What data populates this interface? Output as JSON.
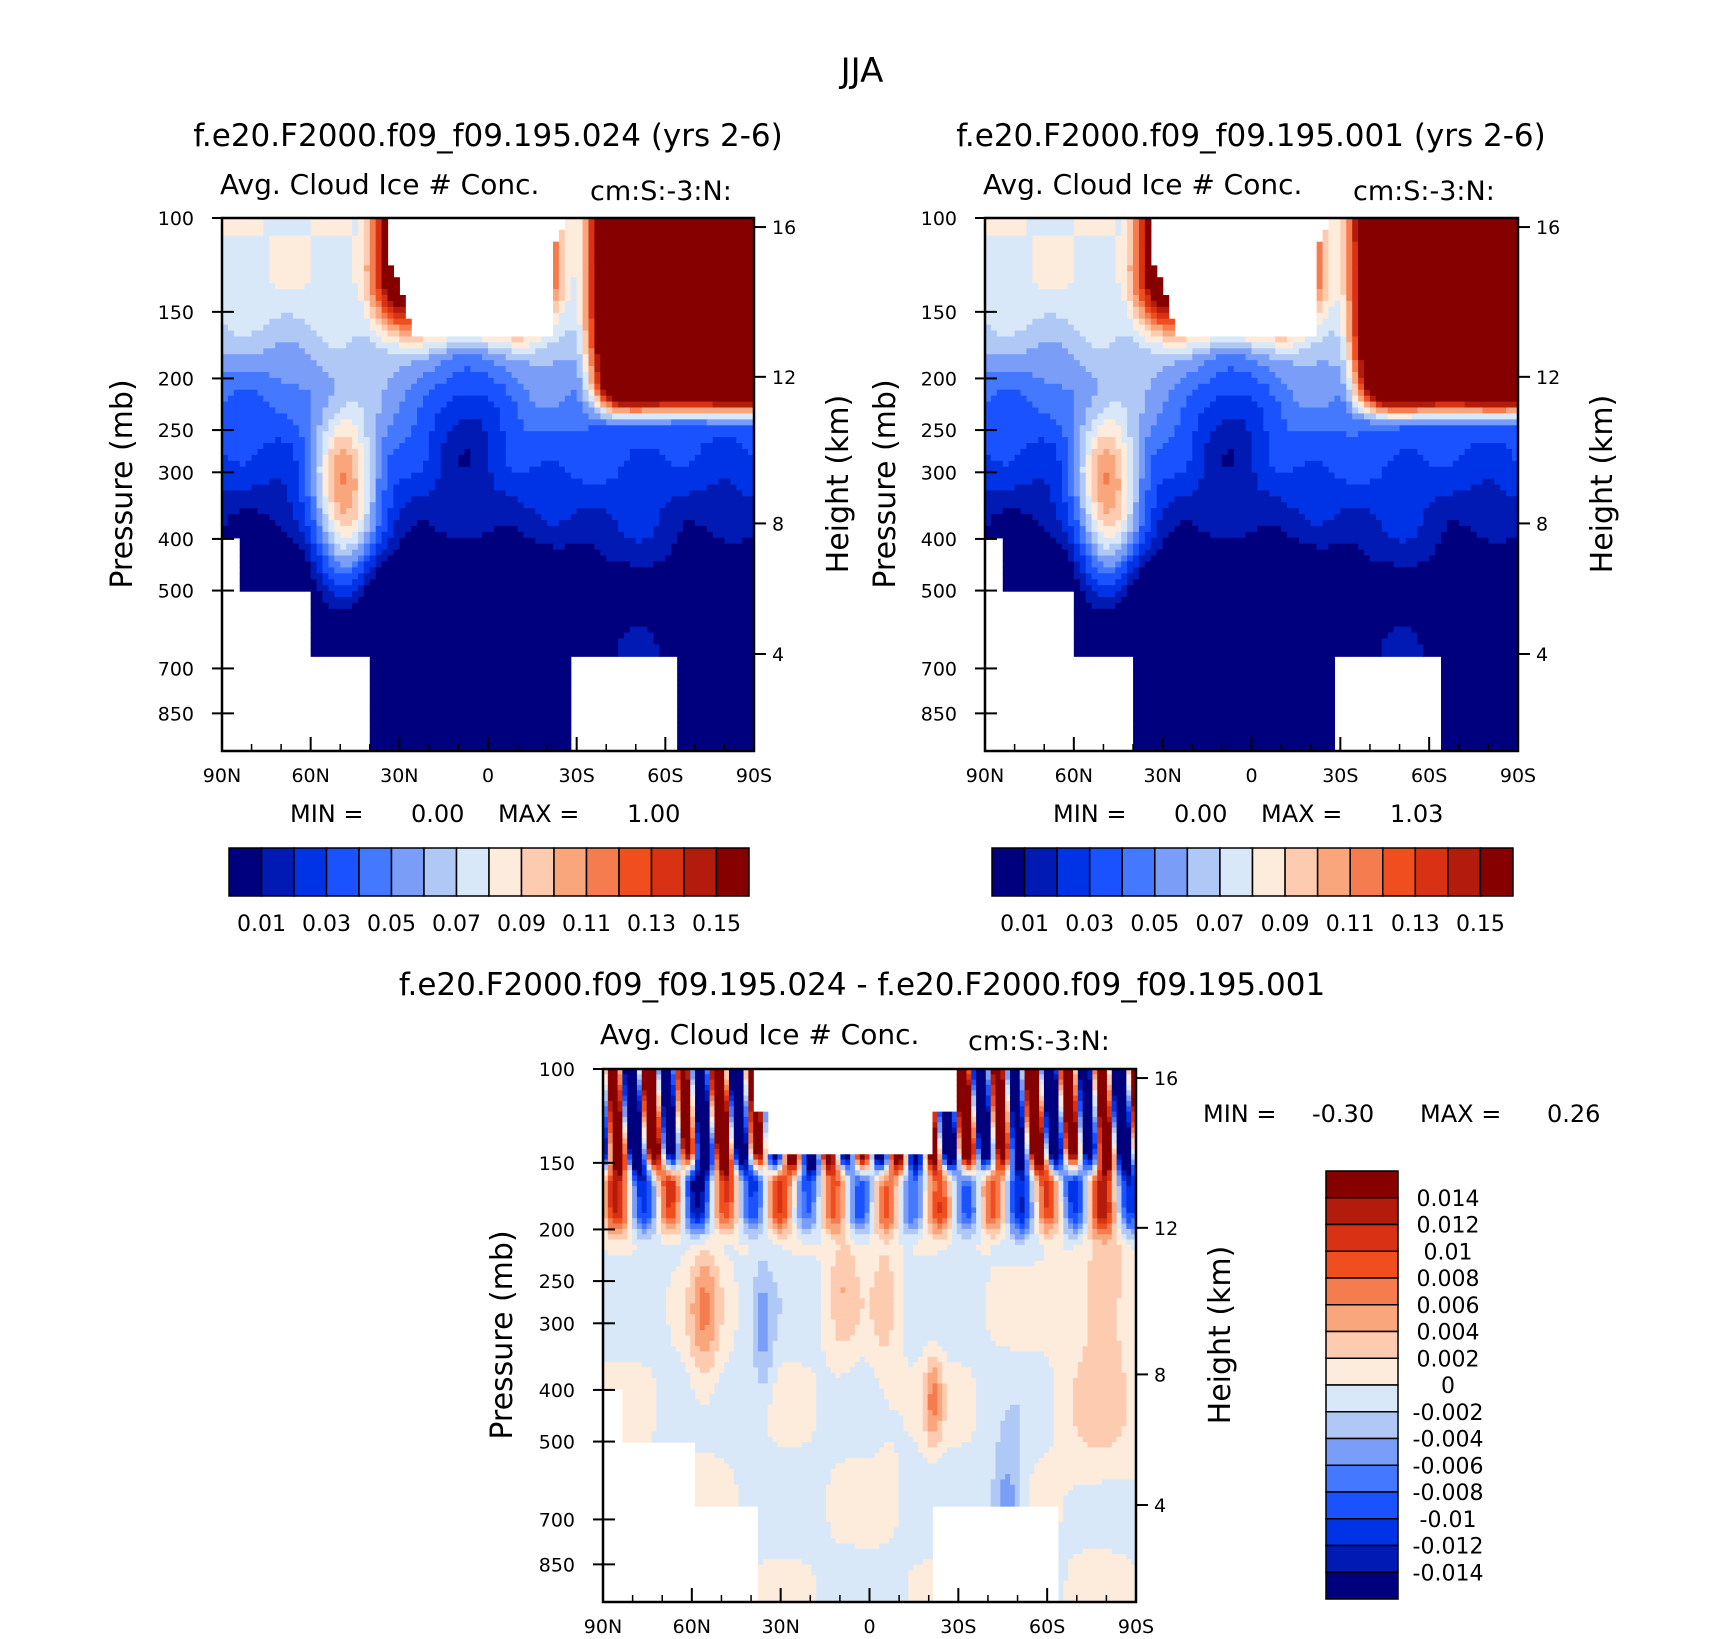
{
  "chart_data": {
    "type": "heatmap",
    "title": "JJA",
    "colors": {
      "abs": [
        "#00007f",
        "#001ab3",
        "#0033e6",
        "#1a52ff",
        "#4478ff",
        "#7a9ef7",
        "#b0c8f5",
        "#d9e8f8",
        "#fdebdc",
        "#fdcbb0",
        "#f9a67d",
        "#f57c4e",
        "#f04e1f",
        "#d93114",
        "#b31c0c",
        "#870000"
      ],
      "diff": [
        "#870000",
        "#b31c0c",
        "#d93114",
        "#f04e1f",
        "#f57c4e",
        "#f9a67d",
        "#fdcbb0",
        "#fdebdc",
        "#d9e8f8",
        "#b0c8f5",
        "#7a9ef7",
        "#4478ff",
        "#1a52ff",
        "#0033e6",
        "#001ab3",
        "#00007f"
      ]
    },
    "panels": [
      {
        "id": "ctrl",
        "title": "f.e20.F2000.f09_f09.195.024 (yrs 2-6)",
        "variable": "Avg. Cloud Ice # Conc.",
        "units": "cm:S:-3:N:",
        "ylabel": "Pressure (mb)",
        "y2label": "Height (km)",
        "xticks": [
          "90N",
          "60N",
          "30N",
          "0",
          "30S",
          "60S",
          "90S"
        ],
        "yticks": [
          "100",
          "150",
          "200",
          "250",
          "300",
          "400",
          "500",
          "700",
          "850"
        ],
        "y2ticks": [
          "16",
          "12",
          "8",
          "4"
        ],
        "min_label": "MIN =",
        "min_value": "0.00",
        "max_label": "MAX =",
        "max_value": "1.00",
        "colorbar_labels": [
          "0.01",
          "0.03",
          "0.05",
          "0.07",
          "0.09",
          "0.11",
          "0.13",
          "0.15"
        ],
        "bias": 0
      },
      {
        "id": "test",
        "title": "f.e20.F2000.f09_f09.195.001 (yrs 2-6)",
        "variable": "Avg. Cloud Ice # Conc.",
        "units": "cm:S:-3:N:",
        "ylabel": "Pressure (mb)",
        "y2label": "Height (km)",
        "xticks": [
          "90N",
          "60N",
          "30N",
          "0",
          "30S",
          "60S",
          "90S"
        ],
        "yticks": [
          "100",
          "150",
          "200",
          "250",
          "300",
          "400",
          "500",
          "700",
          "850"
        ],
        "y2ticks": [
          "16",
          "12",
          "8",
          "4"
        ],
        "min_label": "MIN =",
        "min_value": "0.00",
        "max_label": "MAX =",
        "max_value": "1.03",
        "colorbar_labels": [
          "0.01",
          "0.03",
          "0.05",
          "0.07",
          "0.09",
          "0.11",
          "0.13",
          "0.15"
        ],
        "bias": 1
      },
      {
        "id": "diff",
        "title": "f.e20.F2000.f09_f09.195.024 - f.e20.F2000.f09_f09.195.001",
        "variable": "Avg. Cloud Ice # Conc.",
        "units": "cm:S:-3:N:",
        "ylabel": "Pressure (mb)",
        "y2label": "Height (km)",
        "xticks": [
          "90N",
          "60N",
          "30N",
          "0",
          "30S",
          "60S",
          "90S"
        ],
        "yticks": [
          "100",
          "150",
          "200",
          "250",
          "300",
          "400",
          "500",
          "700",
          "850"
        ],
        "y2ticks": [
          "16",
          "12",
          "8",
          "4"
        ],
        "min_label": "MIN =",
        "min_value": "-0.30",
        "max_label": "MAX =",
        "max_value": "0.26",
        "colorbar_labels": [
          "0.014",
          "0.012",
          "0.01",
          "0.008",
          "0.006",
          "0.004",
          "0.002",
          "0",
          "-0.002",
          "-0.004",
          "-0.006",
          "-0.008",
          "-0.01",
          "-0.012",
          "-0.014"
        ]
      }
    ]
  }
}
